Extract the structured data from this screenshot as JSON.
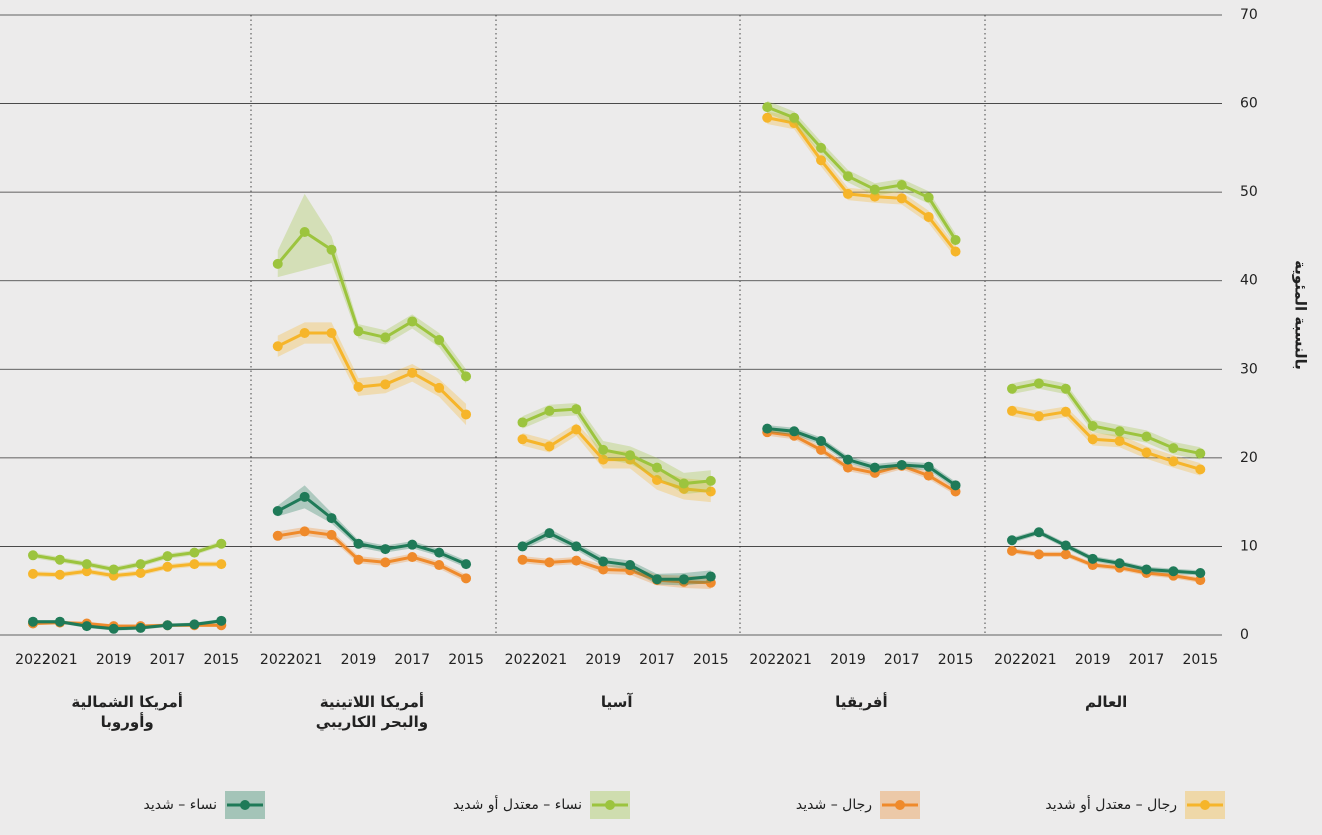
{
  "chart_data": {
    "type": "line",
    "ylabel": "بالنسبة المئوية",
    "ylim": [
      0,
      70
    ],
    "yticks": [
      0,
      10,
      20,
      30,
      40,
      50,
      60,
      70
    ],
    "grid": true,
    "categories": [
      "2022",
      "2021",
      null,
      "2019",
      null,
      "2017",
      null,
      "2015"
    ],
    "legend": [
      {
        "name": "رجال – معتدل أو شديد",
        "color": "#f6b52a"
      },
      {
        "name": "رجال – شديد",
        "color": "#ef8a2b"
      },
      {
        "name": "نساء – معتدل أو شديد",
        "color": "#9cc43e"
      },
      {
        "name": "نساء – شديد",
        "color": "#1f7a58"
      }
    ],
    "panels": [
      {
        "title": [
          "العالم"
        ],
        "series": [
          {
            "values": [
              25.3,
              24.7,
              25.2,
              22.1,
              21.9,
              20.6,
              19.6,
              18.7
            ],
            "errors": [
              0.6,
              0.6,
              0.6,
              0.7,
              0.7,
              0.7,
              0.7,
              0.7
            ]
          },
          {
            "values": [
              9.5,
              9.1,
              9.1,
              7.9,
              7.6,
              7.0,
              6.7,
              6.2
            ],
            "errors": [
              0.3,
              0.3,
              0.3,
              0.3,
              0.3,
              0.3,
              0.3,
              0.3
            ]
          },
          {
            "values": [
              27.8,
              28.4,
              27.8,
              23.6,
              23.0,
              22.4,
              21.1,
              20.5
            ],
            "errors": [
              0.6,
              0.6,
              0.6,
              0.7,
              0.7,
              0.7,
              0.7,
              0.7
            ]
          },
          {
            "values": [
              10.7,
              11.6,
              10.1,
              8.6,
              8.1,
              7.4,
              7.2,
              7.0
            ],
            "errors": [
              0.3,
              0.3,
              0.3,
              0.3,
              0.3,
              0.3,
              0.3,
              0.3
            ]
          }
        ]
      },
      {
        "title": [
          "أفريقيا"
        ],
        "series": [
          {
            "values": [
              58.4,
              57.8,
              53.6,
              49.8,
              49.5,
              49.3,
              47.2,
              43.3
            ],
            "errors": [
              0.7,
              0.7,
              0.7,
              0.7,
              0.7,
              0.7,
              0.7,
              0.7
            ]
          },
          {
            "values": [
              22.9,
              22.5,
              20.9,
              18.9,
              18.3,
              19.1,
              18.0,
              16.2
            ],
            "errors": [
              0.4,
              0.4,
              0.4,
              0.4,
              0.4,
              0.4,
              0.4,
              0.4
            ]
          },
          {
            "values": [
              59.6,
              58.4,
              55.0,
              51.8,
              50.3,
              50.8,
              49.4,
              44.6
            ],
            "errors": [
              0.7,
              0.7,
              0.7,
              0.7,
              0.7,
              0.7,
              0.7,
              0.7
            ]
          },
          {
            "values": [
              23.3,
              23.0,
              21.9,
              19.8,
              18.9,
              19.2,
              19.0,
              16.9
            ],
            "errors": [
              0.4,
              0.4,
              0.4,
              0.4,
              0.4,
              0.4,
              0.4,
              0.4
            ]
          }
        ]
      },
      {
        "title": [
          "آسيا"
        ],
        "series": [
          {
            "values": [
              22.1,
              21.3,
              23.2,
              19.8,
              19.8,
              17.5,
              16.5,
              16.2
            ],
            "errors": [
              0.7,
              0.7,
              0.7,
              1.0,
              1.0,
              1.1,
              1.2,
              1.2
            ]
          },
          {
            "values": [
              8.5,
              8.2,
              8.4,
              7.4,
              7.3,
              6.2,
              6.0,
              5.9
            ],
            "errors": [
              0.4,
              0.4,
              0.4,
              0.5,
              0.5,
              0.6,
              0.7,
              0.7
            ]
          },
          {
            "values": [
              24.0,
              25.3,
              25.5,
              20.9,
              20.3,
              18.9,
              17.1,
              17.4
            ],
            "errors": [
              0.7,
              0.7,
              0.7,
              1.0,
              1.0,
              1.1,
              1.2,
              1.2
            ]
          },
          {
            "values": [
              10.0,
              11.5,
              10.0,
              8.3,
              7.9,
              6.3,
              6.3,
              6.6
            ],
            "errors": [
              0.4,
              0.5,
              0.4,
              0.5,
              0.5,
              0.6,
              0.7,
              0.7
            ]
          }
        ]
      },
      {
        "title": [
          "أمريكا اللاتينية",
          "والبحر الكاريبي"
        ],
        "series": [
          {
            "values": [
              32.6,
              34.1,
              34.1,
              28.0,
              28.3,
              29.6,
              27.9,
              24.9
            ],
            "errors": [
              1.2,
              1.2,
              1.2,
              1.0,
              1.0,
              1.0,
              1.0,
              1.2
            ]
          },
          {
            "values": [
              11.2,
              11.7,
              11.3,
              8.5,
              8.2,
              8.8,
              7.9,
              6.4
            ],
            "errors": [
              0.5,
              0.5,
              0.5,
              0.4,
              0.4,
              0.4,
              0.4,
              0.4
            ]
          },
          {
            "values": [
              41.9,
              45.5,
              43.5,
              34.3,
              33.6,
              35.4,
              33.3,
              29.2
            ],
            "errors": [
              1.5,
              4.3,
              1.5,
              0.8,
              0.8,
              0.8,
              0.8,
              0.8
            ]
          },
          {
            "values": [
              14.0,
              15.6,
              13.2,
              10.3,
              9.7,
              10.2,
              9.3,
              8.0
            ],
            "errors": [
              0.6,
              1.3,
              0.6,
              0.4,
              0.4,
              0.4,
              0.4,
              0.4
            ]
          }
        ]
      },
      {
        "title": [
          "أمريكا الشمالية",
          "وأوروبا"
        ],
        "series": [
          {
            "values": [
              6.9,
              6.8,
              7.2,
              6.7,
              7.0,
              7.7,
              8.0,
              8.0
            ],
            "errors": [
              0.3,
              0.3,
              0.3,
              0.3,
              0.3,
              0.3,
              0.3,
              0.3
            ]
          },
          {
            "values": [
              1.3,
              1.4,
              1.3,
              1.0,
              1.0,
              1.1,
              1.1,
              1.1
            ],
            "errors": [
              0.2,
              0.2,
              0.2,
              0.2,
              0.2,
              0.2,
              0.2,
              0.2
            ]
          },
          {
            "values": [
              9.0,
              8.5,
              8.0,
              7.4,
              8.0,
              8.9,
              9.3,
              10.3
            ],
            "errors": [
              0.3,
              0.3,
              0.3,
              0.3,
              0.3,
              0.3,
              0.3,
              0.3
            ]
          },
          {
            "values": [
              1.5,
              1.5,
              1.0,
              0.7,
              0.8,
              1.1,
              1.2,
              1.6
            ],
            "errors": [
              0.2,
              0.2,
              0.2,
              0.2,
              0.2,
              0.2,
              0.2,
              0.2
            ]
          }
        ]
      }
    ]
  }
}
